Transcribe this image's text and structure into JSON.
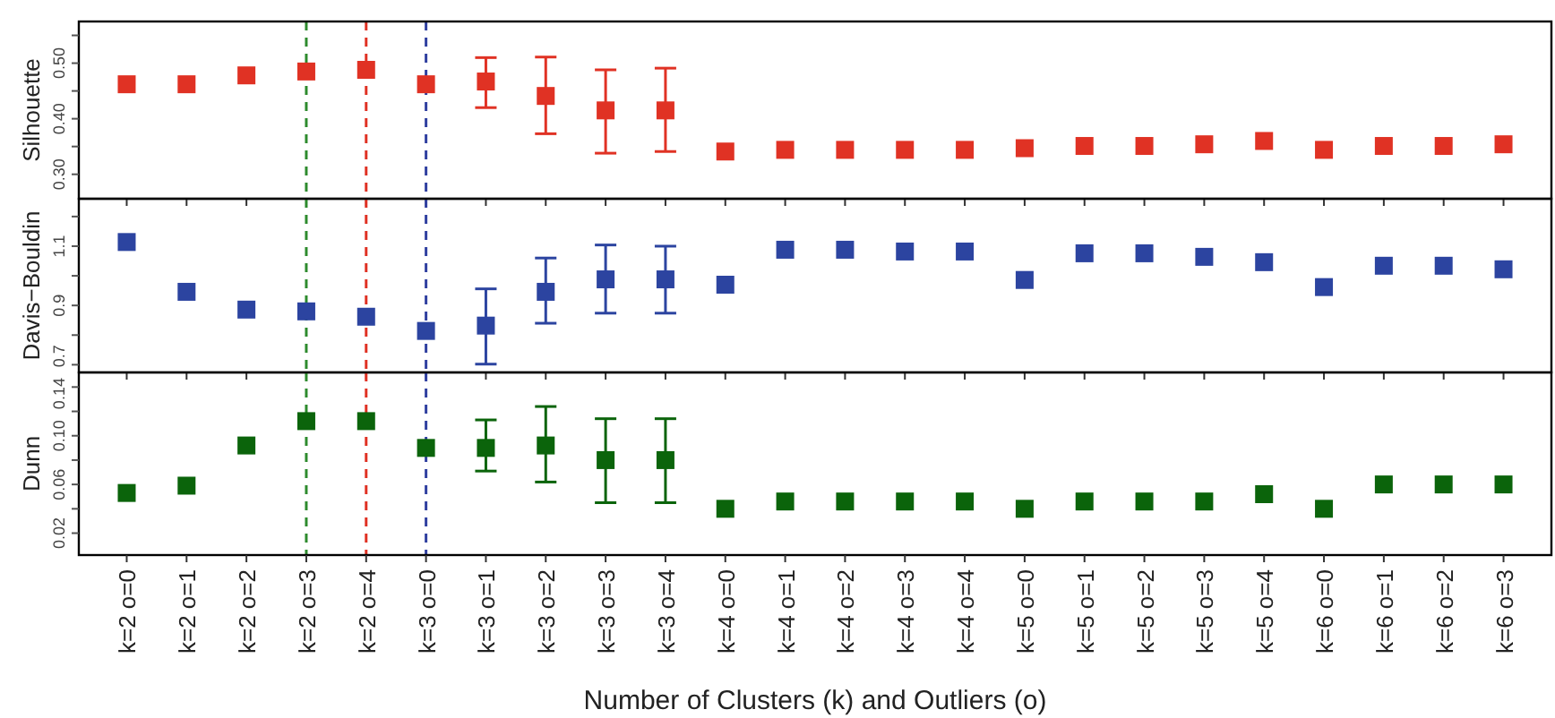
{
  "chart_data": [
    {
      "type": "scatter",
      "ylabel": "Silhouette",
      "categories": [
        "k=2 o=0",
        "k=2 o=1",
        "k=2 o=2",
        "k=2 o=3",
        "k=2 o=4",
        "k=3 o=0",
        "k=3 o=1",
        "k=3 o=2",
        "k=3 o=3",
        "k=3 o=4",
        "k=4 o=0",
        "k=4 o=1",
        "k=4 o=2",
        "k=4 o=3",
        "k=4 o=4",
        "k=5 o=0",
        "k=5 o=1",
        "k=5 o=2",
        "k=5 o=3",
        "k=5 o=4",
        "k=6 o=0",
        "k=6 o=1",
        "k=6 o=2",
        "k=6 o=3"
      ],
      "series": [
        {
          "color": "#e03224",
          "values": [
            0.462,
            0.462,
            0.478,
            0.485,
            0.488,
            0.462,
            0.467,
            0.441,
            0.415,
            0.415,
            0.341,
            0.344,
            0.344,
            0.344,
            0.344,
            0.347,
            0.351,
            0.351,
            0.354,
            0.36,
            0.344,
            0.351,
            0.351,
            0.354
          ],
          "errors": [
            null,
            null,
            null,
            null,
            null,
            null,
            [
              0.42,
              0.51
            ],
            [
              0.373,
              0.511
            ],
            [
              0.338,
              0.488
            ],
            [
              0.341,
              0.491
            ],
            null,
            null,
            null,
            null,
            null,
            null,
            null,
            null,
            null,
            null,
            null,
            null,
            null,
            null
          ]
        }
      ],
      "ylim": [
        0.256,
        0.575
      ],
      "yticks": [
        {
          "value": 0.3,
          "label": "0.30"
        },
        {
          "value": 0.35,
          "label": null
        },
        {
          "value": 0.4,
          "label": "0.40"
        },
        {
          "value": 0.45,
          "label": null
        },
        {
          "value": 0.5,
          "label": "0.50"
        },
        {
          "value": 0.55,
          "label": null
        }
      ],
      "ref_lines": [
        {
          "axis": "x",
          "value": "k=2 o=3",
          "color": "#2e8b2e",
          "line_style": "dashed"
        },
        {
          "axis": "x",
          "value": "k=2 o=4",
          "color": "#e03224",
          "line_style": "dashed"
        },
        {
          "axis": "x",
          "value": "k=3 o=0",
          "color": "#3040a0",
          "line_style": "dashed"
        }
      ],
      "marker": "square",
      "grid": false,
      "tick_labels": "y"
    },
    {
      "type": "scatter",
      "ylabel": "Davis−Bouldin",
      "categories": [
        "k=2 o=0",
        "k=2 o=1",
        "k=2 o=2",
        "k=2 o=3",
        "k=2 o=4",
        "k=3 o=0",
        "k=3 o=1",
        "k=3 o=2",
        "k=3 o=3",
        "k=3 o=4",
        "k=4 o=0",
        "k=4 o=1",
        "k=4 o=2",
        "k=4 o=3",
        "k=4 o=4",
        "k=5 o=0",
        "k=5 o=1",
        "k=5 o=2",
        "k=5 o=3",
        "k=5 o=4",
        "k=6 o=0",
        "k=6 o=1",
        "k=6 o=2",
        "k=6 o=3"
      ],
      "series": [
        {
          "color": "#2c44a0",
          "values": [
            1.114,
            0.946,
            0.886,
            0.88,
            0.862,
            0.814,
            0.832,
            0.946,
            0.988,
            0.988,
            0.97,
            1.088,
            1.088,
            1.082,
            1.082,
            0.986,
            1.076,
            1.076,
            1.064,
            1.046,
            0.962,
            1.034,
            1.034,
            1.022
          ],
          "errors": [
            null,
            null,
            null,
            null,
            null,
            null,
            [
              0.702,
              0.956
            ],
            [
              0.84,
              1.06
            ],
            [
              0.874,
              1.104
            ],
            [
              0.874,
              1.1
            ],
            null,
            null,
            null,
            null,
            null,
            null,
            null,
            null,
            null,
            null,
            null,
            null,
            null,
            null
          ]
        }
      ],
      "ylim": [
        0.674,
        1.26
      ],
      "yticks": [
        0.7,
        {
          "value": 0.8,
          "label": null
        },
        0.9,
        {
          "value": 1.0,
          "label": null
        },
        1.1,
        {
          "value": 1.2,
          "label": null
        }
      ],
      "ref_lines": [
        {
          "axis": "x",
          "value": "k=2 o=3",
          "color": "#2e8b2e",
          "line_style": "dashed"
        },
        {
          "axis": "x",
          "value": "k=2 o=4",
          "color": "#e03224",
          "line_style": "dashed"
        },
        {
          "axis": "x",
          "value": "k=3 o=0",
          "color": "#3040a0",
          "line_style": "dashed"
        }
      ],
      "marker": "square",
      "grid": false,
      "tick_labels": "y"
    },
    {
      "type": "scatter",
      "ylabel": "Dunn",
      "xlabel": "Number of Clusters (k) and Outliers (o)",
      "categories": [
        "k=2 o=0",
        "k=2 o=1",
        "k=2 o=2",
        "k=2 o=3",
        "k=2 o=4",
        "k=3 o=0",
        "k=3 o=1",
        "k=3 o=2",
        "k=3 o=3",
        "k=3 o=4",
        "k=4 o=0",
        "k=4 o=1",
        "k=4 o=2",
        "k=4 o=3",
        "k=4 o=4",
        "k=5 o=0",
        "k=5 o=1",
        "k=5 o=2",
        "k=5 o=3",
        "k=5 o=4",
        "k=6 o=0",
        "k=6 o=1",
        "k=6 o=2",
        "k=6 o=3"
      ],
      "series": [
        {
          "color": "#0b640b",
          "values": [
            0.053,
            0.059,
            0.092,
            0.112,
            0.112,
            0.09,
            0.09,
            0.092,
            0.08,
            0.08,
            0.04,
            0.046,
            0.046,
            0.046,
            0.046,
            0.04,
            0.046,
            0.046,
            0.046,
            0.052,
            0.04,
            0.06,
            0.06,
            0.06
          ],
          "errors": [
            null,
            null,
            null,
            null,
            null,
            null,
            [
              0.071,
              0.113
            ],
            [
              0.062,
              0.124
            ],
            [
              0.045,
              0.114
            ],
            [
              0.045,
              0.114
            ],
            null,
            null,
            null,
            null,
            null,
            null,
            null,
            null,
            null,
            null,
            null,
            null,
            null,
            null
          ]
        }
      ],
      "ylim": [
        0.002,
        0.152
      ],
      "yticks": [
        0.02,
        {
          "value": 0.04,
          "label": null
        },
        0.06,
        {
          "value": 0.08,
          "label": null
        },
        {
          "value": 0.1,
          "label": "0.10"
        },
        {
          "value": 0.12,
          "label": null
        },
        0.14
      ],
      "ref_lines": [
        {
          "axis": "x",
          "value": "k=2 o=3",
          "color": "#2e8b2e",
          "line_style": "dashed"
        },
        {
          "axis": "x",
          "value": "k=2 o=4",
          "color": "#e03224",
          "line_style": "dashed"
        },
        {
          "axis": "x",
          "value": "k=3 o=0",
          "color": "#3040a0",
          "line_style": "dashed"
        }
      ],
      "marker": "square",
      "grid": false
    }
  ]
}
